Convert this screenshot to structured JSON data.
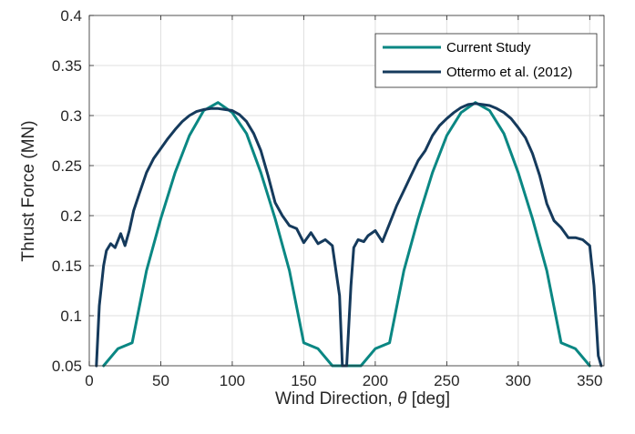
{
  "chart_data": {
    "type": "line",
    "xlabel_text": "Wind Direction, ",
    "xlabel_symbol": "θ",
    "xlabel_unit": " [deg]",
    "ylabel": "Thrust Force (MN)",
    "xlim": [
      0,
      360
    ],
    "ylim": [
      0.05,
      0.4
    ],
    "grid": true,
    "legend_position": "top-right",
    "x_ticks": [
      0,
      50,
      100,
      150,
      200,
      250,
      300,
      350
    ],
    "x_tick_labels": [
      "0",
      "50",
      "100",
      "150",
      "200",
      "250",
      "300",
      "350"
    ],
    "y_ticks": [
      0.05,
      0.1,
      0.15,
      0.2,
      0.25,
      0.3,
      0.35,
      0.4
    ],
    "y_tick_labels": [
      "0.05",
      "0.1",
      "0.15",
      "0.2",
      "0.25",
      "0.3",
      "0.35",
      "0.4"
    ],
    "series": [
      {
        "name": "Current Study",
        "color": "#0a8783",
        "x": [
          10,
          20,
          30,
          40,
          50,
          60,
          70,
          80,
          90,
          100,
          110,
          120,
          130,
          140,
          150,
          160,
          170,
          190,
          200,
          210,
          220,
          230,
          240,
          250,
          260,
          270,
          280,
          290,
          300,
          310,
          320,
          330,
          340,
          350
        ],
        "y": [
          0.05,
          0.067,
          0.073,
          0.145,
          0.197,
          0.243,
          0.28,
          0.305,
          0.313,
          0.303,
          0.282,
          0.243,
          0.197,
          0.145,
          0.073,
          0.067,
          0.05,
          0.05,
          0.067,
          0.073,
          0.145,
          0.197,
          0.243,
          0.28,
          0.303,
          0.313,
          0.305,
          0.282,
          0.243,
          0.197,
          0.145,
          0.073,
          0.067,
          0.05
        ]
      },
      {
        "name": "Ottermo et al. (2012)",
        "color": "#153a5c",
        "x": [
          5,
          7,
          10,
          12,
          15,
          18,
          22,
          25,
          28,
          31,
          35,
          40,
          45,
          50,
          55,
          60,
          65,
          70,
          75,
          80,
          85,
          90,
          95,
          100,
          105,
          110,
          115,
          120,
          125,
          130,
          135,
          140,
          145,
          150,
          155,
          160,
          165,
          170,
          175,
          177,
          180,
          183,
          185,
          188,
          192,
          195,
          200,
          205,
          210,
          215,
          220,
          225,
          230,
          235,
          240,
          245,
          250,
          255,
          260,
          265,
          270,
          275,
          280,
          285,
          290,
          295,
          300,
          305,
          310,
          315,
          320,
          325,
          330,
          335,
          340,
          345,
          350,
          353,
          356,
          358
        ],
        "y": [
          0.05,
          0.11,
          0.15,
          0.165,
          0.172,
          0.168,
          0.182,
          0.17,
          0.185,
          0.205,
          0.222,
          0.243,
          0.257,
          0.267,
          0.277,
          0.286,
          0.294,
          0.3,
          0.304,
          0.306,
          0.307,
          0.307,
          0.306,
          0.305,
          0.301,
          0.294,
          0.282,
          0.265,
          0.24,
          0.213,
          0.2,
          0.19,
          0.187,
          0.173,
          0.183,
          0.172,
          0.176,
          0.17,
          0.12,
          0.05,
          0.05,
          0.13,
          0.168,
          0.176,
          0.174,
          0.18,
          0.185,
          0.174,
          0.192,
          0.21,
          0.225,
          0.24,
          0.255,
          0.265,
          0.28,
          0.29,
          0.297,
          0.303,
          0.308,
          0.311,
          0.312,
          0.311,
          0.31,
          0.307,
          0.303,
          0.297,
          0.288,
          0.278,
          0.262,
          0.24,
          0.212,
          0.195,
          0.188,
          0.178,
          0.178,
          0.176,
          0.17,
          0.13,
          0.06,
          0.05
        ]
      }
    ]
  }
}
